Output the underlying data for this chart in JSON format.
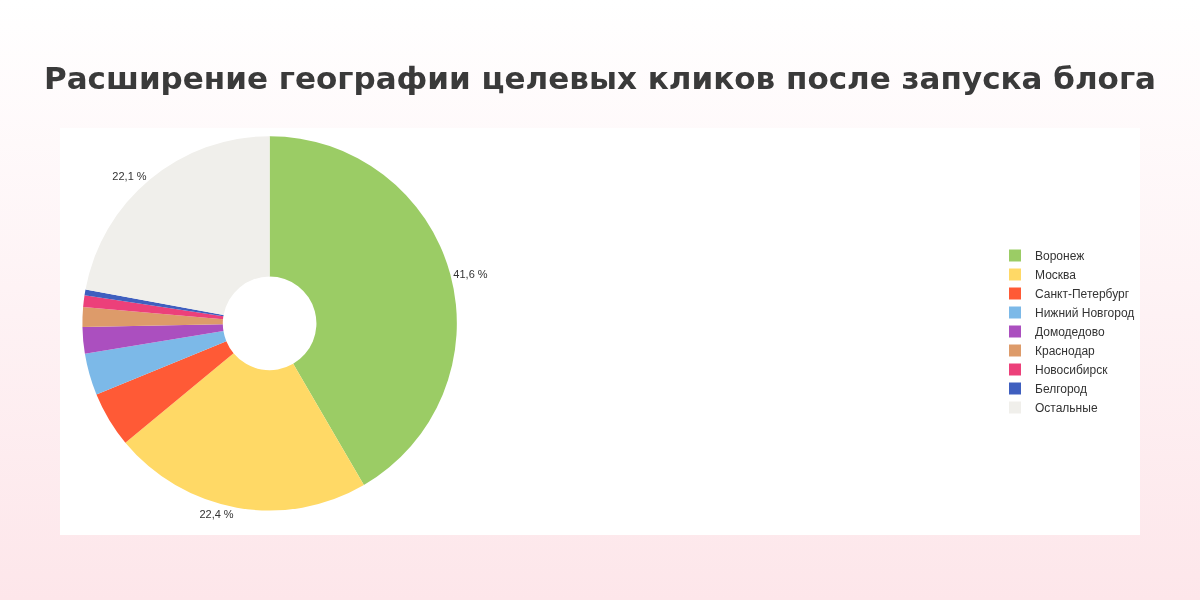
{
  "chart_data": {
    "type": "donut",
    "title": "Расширение географии целевых кликов после запуска блога",
    "categories": [
      "Воронеж",
      "Москва",
      "Санкт-Петербург",
      "Нижний Новгород",
      "Домодедово",
      "Краснодар",
      "Новосибирск",
      "Белгород",
      "Остальные"
    ],
    "values": [
      41.6,
      22.4,
      4.8,
      3.6,
      2.3,
      1.7,
      1.0,
      0.5,
      22.1
    ],
    "colors": [
      "#9bcc65",
      "#ffd966",
      "#ff5a36",
      "#7cb9e8",
      "#ab4fbf",
      "#dd9b6a",
      "#ec407a",
      "#3f5fbf",
      "#f0efeb"
    ],
    "value_labels": [
      "41,6 %",
      "22,4 %",
      null,
      null,
      null,
      null,
      null,
      null,
      "22,1 %"
    ],
    "legend": "right"
  }
}
